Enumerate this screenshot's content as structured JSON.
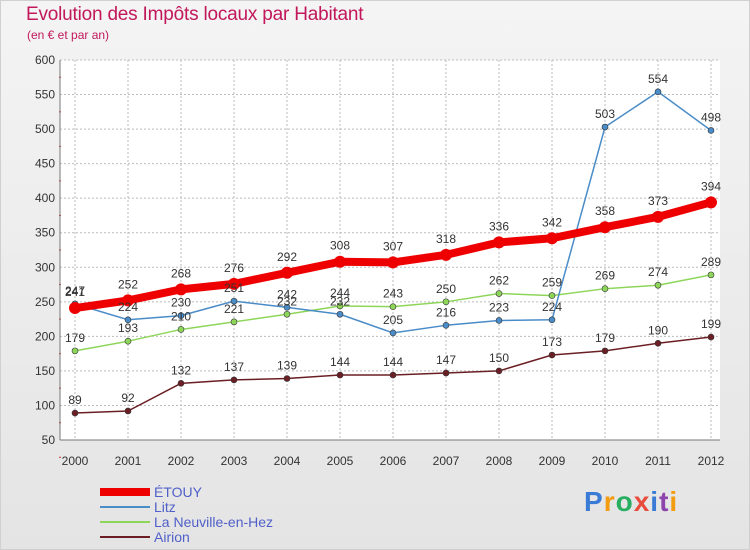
{
  "title": "Evolution des Impôts locaux par Habitant",
  "subtitle": "(en € et par an)",
  "logo_text": "Proxiti",
  "colors": {
    "title": "#c2185b",
    "legend_text": "#5060c8",
    "grid": "#bbbbbb"
  },
  "chart_data": {
    "type": "line",
    "title": "Evolution des Impôts locaux par Habitant",
    "subtitle": "(en € et par an)",
    "xlabel": "",
    "ylabel": "",
    "x": [
      "2000",
      "2001",
      "2002",
      "2003",
      "2004",
      "2005",
      "2006",
      "2007",
      "2008",
      "2009",
      "2010",
      "2011",
      "2012"
    ],
    "ylim": [
      50,
      600
    ],
    "yticks": [
      50,
      100,
      150,
      200,
      250,
      300,
      350,
      400,
      450,
      500,
      550,
      600
    ],
    "grid": true,
    "legend_position": "bottom-left",
    "series": [
      {
        "name": "ÉTOUY",
        "color": "#ee0000",
        "values": [
          241,
          252,
          268,
          276,
          292,
          308,
          307,
          318,
          336,
          342,
          358,
          373,
          394
        ]
      },
      {
        "name": "Litz",
        "color": "#4a8cc8",
        "values": [
          247,
          224,
          230,
          251,
          242,
          232,
          205,
          216,
          223,
          224,
          503,
          554,
          498
        ]
      },
      {
        "name": "La Neuville-en-Hez",
        "color": "#8ed65a",
        "values": [
          179,
          193,
          210,
          221,
          232,
          244,
          243,
          250,
          262,
          259,
          269,
          274,
          289
        ]
      },
      {
        "name": "Airion",
        "color": "#6b1f24",
        "values": [
          89,
          92,
          132,
          137,
          139,
          144,
          144,
          147,
          150,
          173,
          179,
          190,
          199
        ]
      }
    ]
  }
}
